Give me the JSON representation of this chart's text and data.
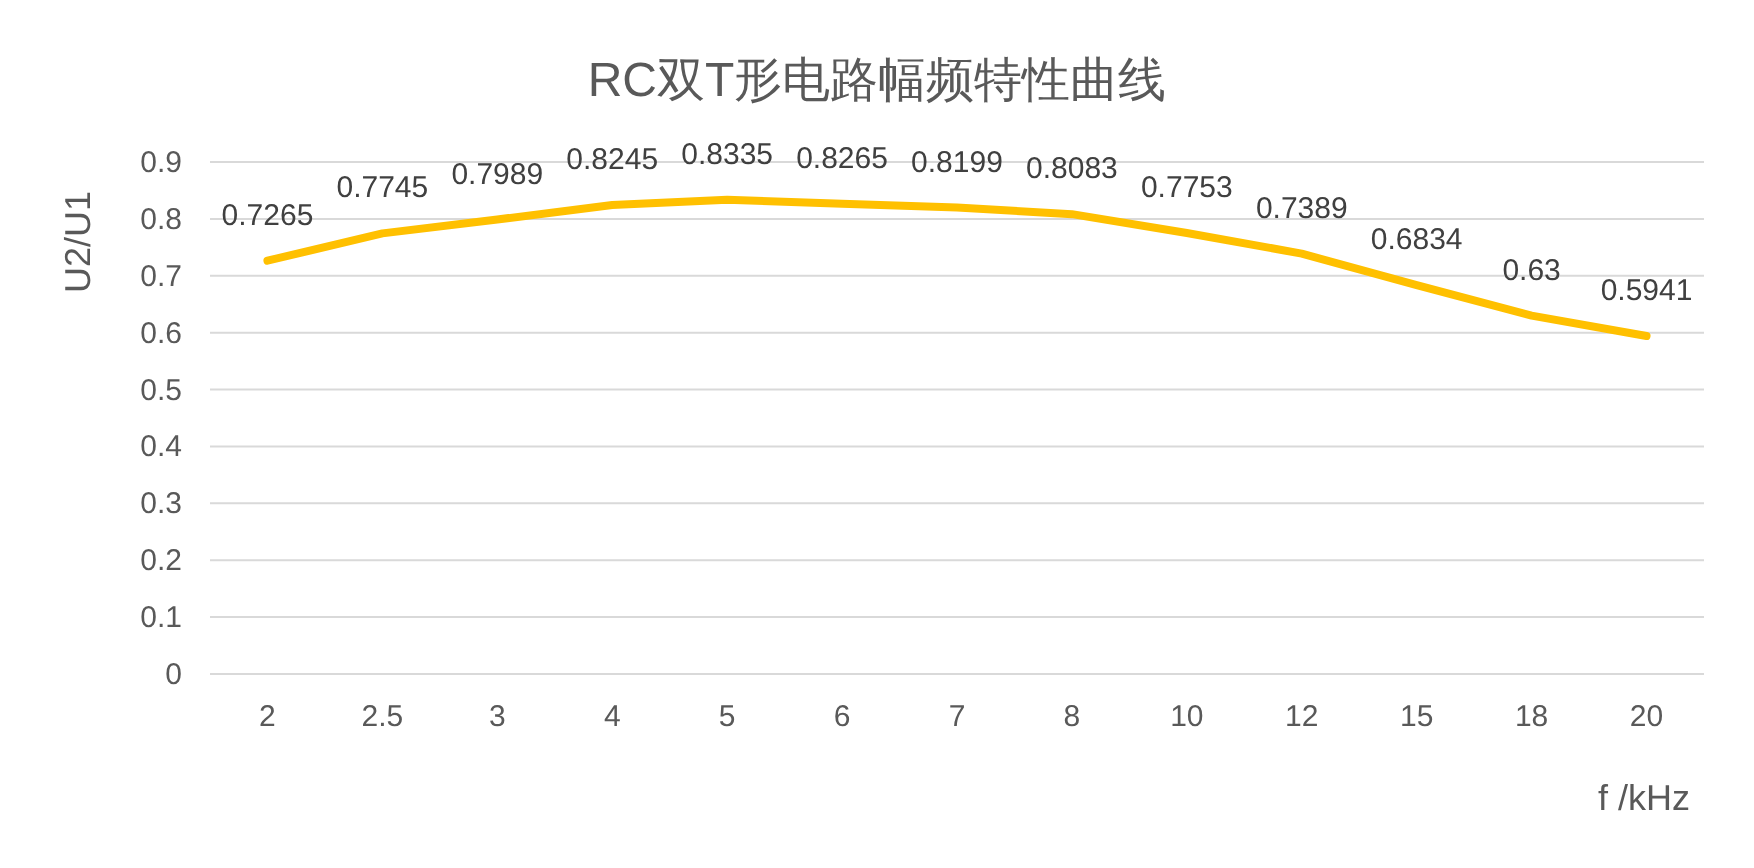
{
  "chart_data": {
    "type": "line",
    "title": "RC双T形电路幅频特性曲线",
    "xlabel": "f /kHz",
    "ylabel": "U2/U1",
    "categories": [
      "2",
      "2.5",
      "3",
      "4",
      "5",
      "6",
      "7",
      "8",
      "10",
      "12",
      "15",
      "18",
      "20"
    ],
    "series": [
      {
        "color": "#ffc000",
        "values": [
          0.7265,
          0.7745,
          0.7989,
          0.8245,
          0.8335,
          0.8265,
          0.8199,
          0.8083,
          0.7753,
          0.7389,
          0.6834,
          0.63,
          0.5941
        ]
      }
    ],
    "ylim": [
      0,
      0.9
    ],
    "yticks": [
      0,
      0.1,
      0.2,
      0.3,
      0.4,
      0.5,
      0.6,
      0.7,
      0.8,
      0.9
    ],
    "grid": "y",
    "data_labels": true,
    "marker": "none",
    "line_style": "solid"
  }
}
